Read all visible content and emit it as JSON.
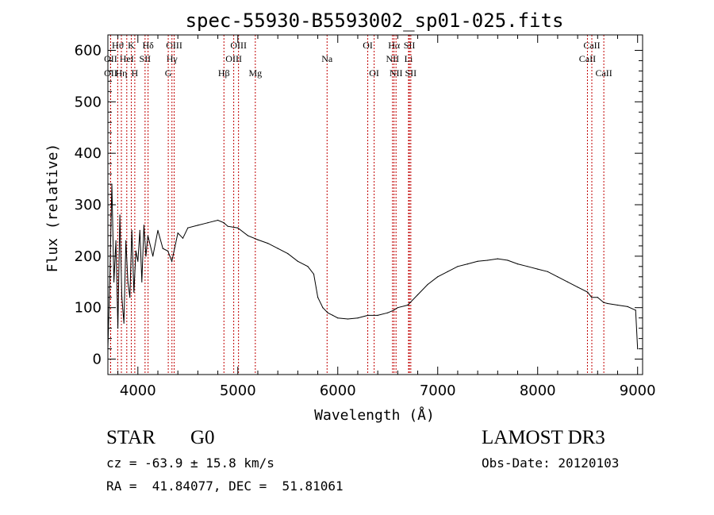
{
  "chart_data": {
    "type": "line",
    "title": "spec-55930-B5593002_sp01-025.fits",
    "xlabel": "Wavelength (Å)",
    "ylabel": "Flux (relative)",
    "xlim": [
      3700,
      9050
    ],
    "ylim": [
      -30,
      630
    ],
    "xticks": [
      4000,
      5000,
      6000,
      7000,
      8000,
      9000
    ],
    "yticks": [
      0,
      100,
      200,
      300,
      400,
      500,
      600
    ],
    "series": [
      {
        "name": "flux",
        "x": [
          3700,
          3720,
          3740,
          3760,
          3780,
          3800,
          3820,
          3840,
          3860,
          3880,
          3900,
          3920,
          3940,
          3960,
          3980,
          4000,
          4020,
          4040,
          4060,
          4080,
          4100,
          4150,
          4200,
          4250,
          4300,
          4340,
          4400,
          4450,
          4500,
          4600,
          4700,
          4800,
          4860,
          4900,
          5000,
          5100,
          5200,
          5300,
          5400,
          5500,
          5600,
          5700,
          5760,
          5800,
          5850,
          5900,
          5950,
          6000,
          6100,
          6200,
          6300,
          6400,
          6500,
          6560,
          6600,
          6700,
          6800,
          6900,
          7000,
          7100,
          7200,
          7300,
          7400,
          7500,
          7600,
          7700,
          7800,
          7900,
          8000,
          8100,
          8200,
          8300,
          8400,
          8500,
          8540,
          8600,
          8660,
          8700,
          8800,
          8900,
          8980,
          9000
        ],
        "y": [
          20,
          160,
          340,
          150,
          230,
          60,
          280,
          120,
          70,
          230,
          150,
          120,
          250,
          130,
          210,
          190,
          250,
          150,
          260,
          200,
          240,
          200,
          250,
          215,
          210,
          190,
          245,
          235,
          255,
          260,
          265,
          270,
          265,
          258,
          255,
          240,
          232,
          225,
          215,
          205,
          190,
          180,
          165,
          120,
          100,
          90,
          85,
          80,
          78,
          80,
          85,
          85,
          90,
          95,
          100,
          105,
          125,
          145,
          160,
          170,
          180,
          185,
          190,
          192,
          195,
          192,
          185,
          180,
          175,
          170,
          160,
          150,
          140,
          130,
          120,
          120,
          110,
          108,
          105,
          102,
          95,
          20
        ]
      }
    ],
    "spectral_lines": [
      {
        "name": "Hϑ",
        "wavelength": 3798,
        "row": 1
      },
      {
        "name": "OII",
        "wavelength": 3727,
        "row": 2
      },
      {
        "name": "OII",
        "wavelength": 3727,
        "row": 3
      },
      {
        "name": "HeI",
        "wavelength": 3889,
        "row": 2
      },
      {
        "name": "Hη",
        "wavelength": 3835,
        "row": 3
      },
      {
        "name": "K",
        "wavelength": 3934,
        "row": 1
      },
      {
        "name": "H",
        "wavelength": 3969,
        "row": 3
      },
      {
        "name": "SII",
        "wavelength": 4072,
        "row": 2
      },
      {
        "name": "Hδ",
        "wavelength": 4102,
        "row": 1
      },
      {
        "name": "OIII",
        "wavelength": 4363,
        "row": 1
      },
      {
        "name": "Hγ",
        "wavelength": 4341,
        "row": 2
      },
      {
        "name": "G",
        "wavelength": 4304,
        "row": 3
      },
      {
        "name": "Hβ",
        "wavelength": 4861,
        "row": 3
      },
      {
        "name": "OIII",
        "wavelength": 5007,
        "row": 1
      },
      {
        "name": "OIII",
        "wavelength": 4959,
        "row": 2
      },
      {
        "name": "Mg",
        "wavelength": 5175,
        "row": 3
      },
      {
        "name": "Na",
        "wavelength": 5893,
        "row": 2
      },
      {
        "name": "OI",
        "wavelength": 6300,
        "row": 1
      },
      {
        "name": "OI",
        "wavelength": 6364,
        "row": 3
      },
      {
        "name": "Hα",
        "wavelength": 6563,
        "row": 1
      },
      {
        "name": "NII",
        "wavelength": 6548,
        "row": 2
      },
      {
        "name": "NII",
        "wavelength": 6583,
        "row": 3
      },
      {
        "name": "SII",
        "wavelength": 6717,
        "row": 1
      },
      {
        "name": "Li",
        "wavelength": 6708,
        "row": 2
      },
      {
        "name": "SII",
        "wavelength": 6731,
        "row": 3
      },
      {
        "name": "CaII",
        "wavelength": 8542,
        "row": 1
      },
      {
        "name": "CaII",
        "wavelength": 8498,
        "row": 2
      },
      {
        "name": "CaII",
        "wavelength": 8662,
        "row": 3
      }
    ]
  },
  "info": {
    "object_class": "STAR",
    "subclass": "G0",
    "survey": "LAMOST DR3",
    "redshift_line": "cz = -63.9 ± 15.8 km/s",
    "obs_date_line": "Obs-Date: 20120103",
    "coords_line": "RA =  41.84077, DEC =  51.81061"
  }
}
